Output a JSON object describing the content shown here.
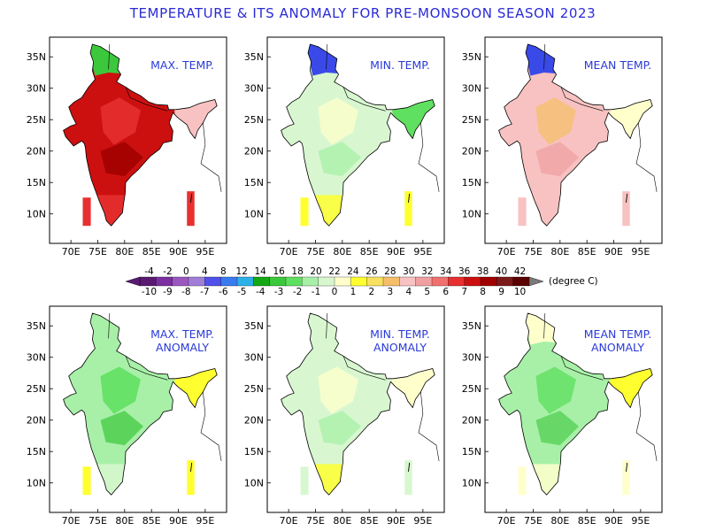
{
  "title": "TEMPERATURE & ITS ANOMALY FOR PRE-MONSOON SEASON 2023",
  "colors": {
    "text_blue": "#2a3ad8",
    "legend": [
      "#5a1a72",
      "#7b2fa0",
      "#9b57c0",
      "#a07ed8",
      "#5050ea",
      "#3a7af0",
      "#2cb0e8",
      "#14a814",
      "#3cc83c",
      "#60e060",
      "#a8f0a8",
      "#d8f7d0",
      "#ffffcc",
      "#ffff30",
      "#f8e060",
      "#f5bf6a",
      "#f8c2c2",
      "#f0a0a0",
      "#f07070",
      "#e83030",
      "#cc1010",
      "#a00000",
      "#7a1a1a",
      "#5a0000"
    ]
  },
  "colorbar": {
    "top_labels": [
      "-4",
      "-2",
      "0",
      "4",
      "8",
      "12",
      "14",
      "16",
      "18",
      "20",
      "22",
      "24",
      "26",
      "28",
      "30",
      "32",
      "34",
      "36",
      "38",
      "40",
      "42"
    ],
    "bottom_labels": [
      "-10",
      "-9",
      "-8",
      "-7",
      "-6",
      "-5",
      "-4",
      "-3",
      "-2",
      "-1",
      "0",
      "1",
      "2",
      "3",
      "4",
      "5",
      "6",
      "7",
      "8",
      "9",
      "10"
    ],
    "unit": "(degree C)"
  },
  "axes": {
    "lon_ticks": [
      "70E",
      "75E",
      "80E",
      "85E",
      "90E",
      "95E"
    ],
    "lat_ticks": [
      "35N",
      "30N",
      "25N",
      "20N",
      "15N",
      "10N"
    ]
  },
  "panels": [
    {
      "id": "max-temp",
      "label_lines": [
        "MAX. TEMP."
      ],
      "base": "#cc1010",
      "sub": [
        [
          "#e83030",
          0.45
        ],
        [
          "#a00000",
          0.45
        ]
      ],
      "north": "#3cc83c",
      "ne": "#f8c2c2",
      "islands": "#e83030",
      "south": "#e83030"
    },
    {
      "id": "min-temp",
      "label_lines": [
        "MIN. TEMP."
      ],
      "base": "#d8f7d0",
      "sub": [
        [
          "#ffffcc",
          0.35
        ],
        [
          "#a8f0a8",
          0.35
        ]
      ],
      "north": "#3a4ae8",
      "ne": "#60e060",
      "islands": "#ffff30",
      "south": "#ffff30"
    },
    {
      "id": "mean-temp",
      "label_lines": [
        "MEAN TEMP."
      ],
      "base": "#f8c2c2",
      "sub": [
        [
          "#f5bf6a",
          0.35
        ],
        [
          "#f0a0a0",
          0.35
        ]
      ],
      "north": "#3a4ae8",
      "ne": "#ffffcc",
      "islands": "#f8c2c2",
      "south": "#f8c2c2"
    },
    {
      "id": "max-temp-anomaly",
      "label_lines": [
        "MAX. TEMP.",
        "ANOMALY"
      ],
      "base": "#a8f0a8",
      "sub": [
        [
          "#60e060",
          0.5
        ],
        [
          "#3cc83c",
          0.3
        ]
      ],
      "north": "#a8f0a8",
      "ne": "#ffff30",
      "islands": "#ffff30",
      "south": "#d8f7d0"
    },
    {
      "id": "min-temp-anomaly",
      "label_lines": [
        "MIN. TEMP.",
        "ANOMALY"
      ],
      "base": "#d8f7d0",
      "sub": [
        [
          "#ffffcc",
          0.4
        ],
        [
          "#a8f0a8",
          0.35
        ]
      ],
      "north": "#d8f7d0",
      "ne": "#ffffcc",
      "islands": "#d8f7d0",
      "south": "#ffff30"
    },
    {
      "id": "mean-temp-anomaly",
      "label_lines": [
        "MEAN TEMP.",
        "ANOMALY"
      ],
      "base": "#a8f0a8",
      "sub": [
        [
          "#60e060",
          0.4
        ],
        [
          "#3cc83c",
          0.2
        ]
      ],
      "north": "#ffffcc",
      "ne": "#ffff30",
      "islands": "#ffffcc",
      "south": "#ffffcc"
    }
  ]
}
